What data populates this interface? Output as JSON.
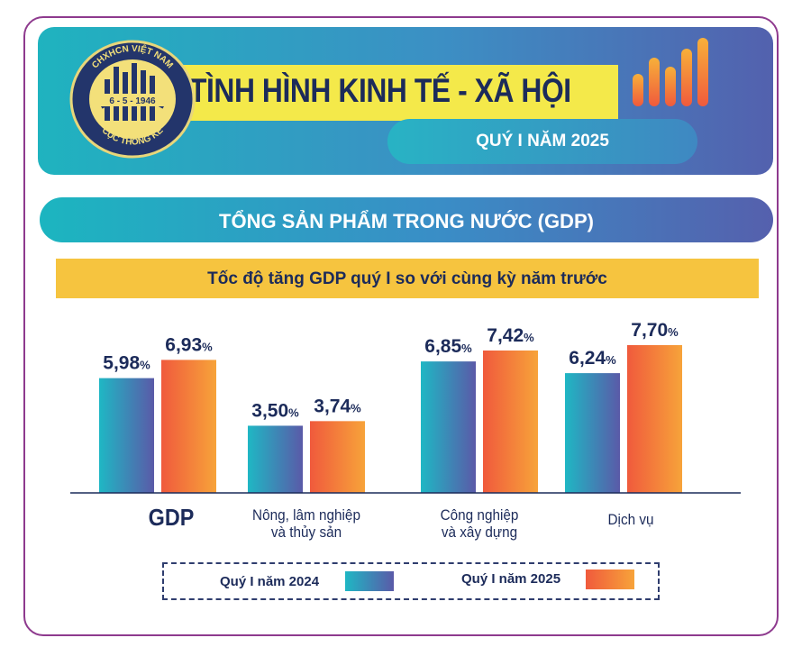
{
  "header": {
    "title": "TÌNH HÌNH KINH TẾ - XÃ HỘI",
    "subtitle": "QUÝ I NĂM 2025",
    "logo": {
      "top_text": "CHXHCN VIỆT NAM",
      "date_text": "6 - 5 - 1946",
      "bottom_text": "CỤC THỐNG KÊ"
    }
  },
  "section": {
    "title": "TỔNG SẢN PHẨM TRONG NƯỚC (GDP)"
  },
  "colors": {
    "series_2024_start": "#1fb7c4",
    "series_2024_end": "#5a5aa8",
    "series_2025_start": "#f05a3c",
    "series_2025_end": "#f7a33a",
    "text_dark": "#1c2b5a"
  },
  "chart_data": {
    "type": "bar",
    "title": "Tốc độ tăng GDP quý I so với cùng kỳ năm trước",
    "categories": [
      "GDP",
      "Nông, lâm nghiệp\nvà thủy sản",
      "Công nghiệp\nvà xây dựng",
      "Dịch vụ"
    ],
    "series": [
      {
        "name": "Quý I năm 2024",
        "values": [
          5.98,
          3.5,
          6.85,
          6.24
        ],
        "labels": [
          "5,98",
          "3,50",
          "6,85",
          "6,24"
        ]
      },
      {
        "name": "Quý I năm 2025",
        "values": [
          6.93,
          3.74,
          7.42,
          7.7
        ],
        "labels": [
          "6,93",
          "3,74",
          "7,42",
          "7,70"
        ]
      }
    ],
    "unit": "%",
    "legend_position": "bottom",
    "grid": false
  }
}
